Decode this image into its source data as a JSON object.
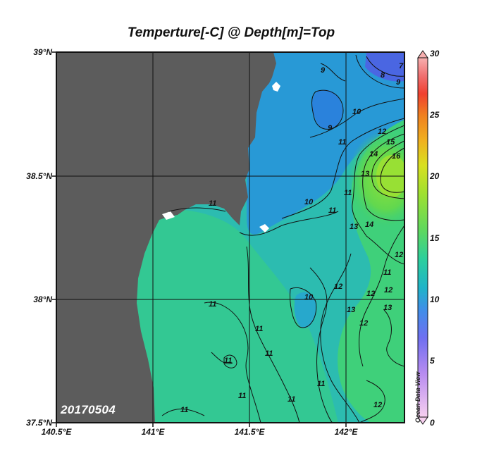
{
  "map": {
    "title": "Temperture[-C] @ Depth[m]=Top",
    "date": "20170504",
    "watermark": "Ocean Data View",
    "lat_labels": [
      "39°N",
      "38.5°N",
      "38°N",
      "37.5°N"
    ],
    "lon_labels": [
      "140.5°E",
      "141°E",
      "141.5°E",
      "142°E"
    ],
    "lon_range": [
      140.5,
      142.3
    ],
    "lat_range": [
      37.5,
      39.0
    ],
    "land_color": "#5c5c5c"
  },
  "colorbar": {
    "min": 0,
    "max": 30,
    "labels": [
      "30",
      "25",
      "20",
      "15",
      "10",
      "5",
      "0"
    ],
    "colors": [
      "#f7d0f0",
      "#b88cf0",
      "#6f6ff0",
      "#3f8fe8",
      "#1fb4c8",
      "#2ccf9c",
      "#5ed85e",
      "#9ee030",
      "#d8e020",
      "#f0b020",
      "#f08020",
      "#f04030",
      "#f07070",
      "#f7b0b0"
    ]
  },
  "contour_labels": [
    "7",
    "8",
    "9",
    "9",
    "9",
    "10",
    "10",
    "10",
    "11",
    "11",
    "11",
    "11",
    "11",
    "11",
    "11",
    "11",
    "11",
    "11",
    "11",
    "11",
    "11",
    "12",
    "12",
    "12",
    "12",
    "12",
    "12",
    "12",
    "13",
    "13",
    "13",
    "13",
    "14",
    "14",
    "15",
    "16"
  ]
}
